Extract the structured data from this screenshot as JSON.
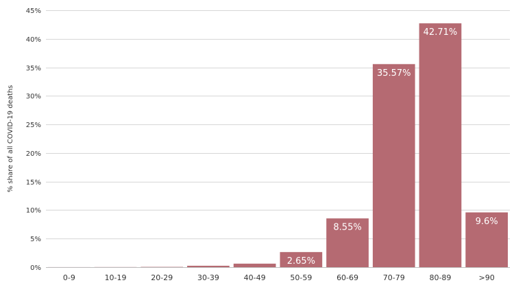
{
  "chart_data": {
    "type": "bar",
    "title": "",
    "xlabel": "",
    "ylabel": "% share of all COVID-19 deaths",
    "ylim": [
      0,
      45
    ],
    "y_ticks": [
      "0%",
      "5%",
      "10%",
      "15%",
      "20%",
      "25%",
      "30%",
      "35%",
      "40%",
      "45%"
    ],
    "y_tick_values": [
      0,
      5,
      10,
      15,
      20,
      25,
      30,
      35,
      40,
      45
    ],
    "categories": [
      "0-9",
      "10-19",
      "20-29",
      "30-39",
      "40-49",
      "50-59",
      "60-69",
      "70-79",
      "80-89",
      ">90"
    ],
    "values": [
      0.01,
      0.02,
      0.05,
      0.25,
      0.62,
      2.65,
      8.55,
      35.57,
      42.71,
      9.6
    ],
    "data_labels": [
      "",
      "",
      "",
      "",
      "",
      "2.65%",
      "8.55%",
      "35.57%",
      "42.71%",
      "9.6%"
    ],
    "bar_color": "#b56a72",
    "grid": true,
    "legend": "none"
  }
}
